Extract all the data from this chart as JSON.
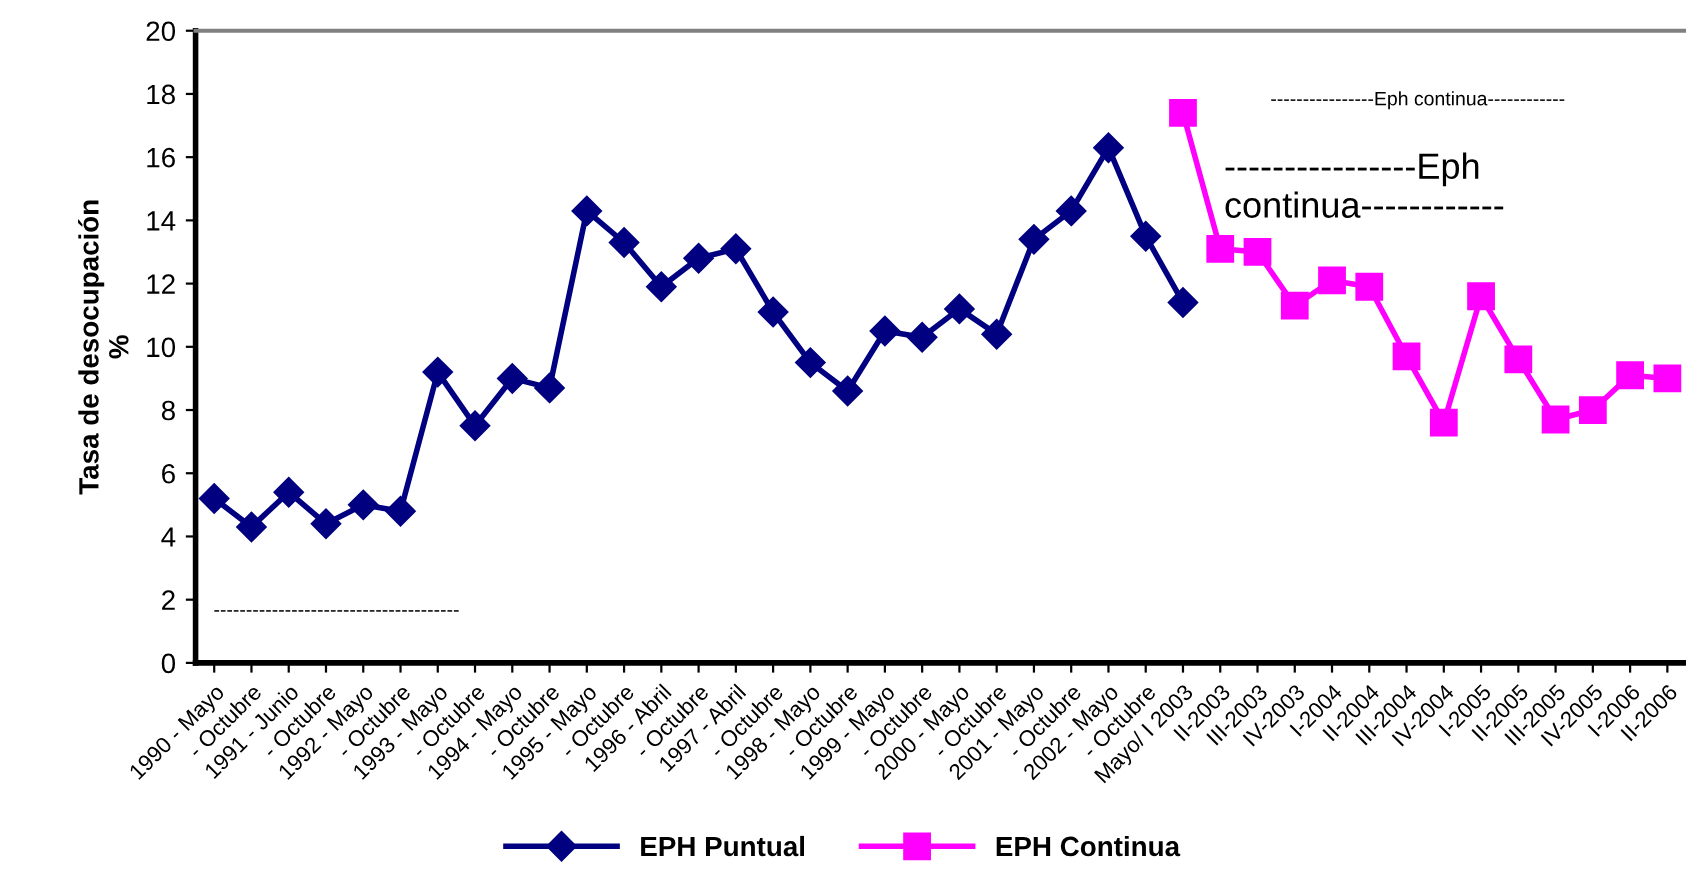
{
  "chart_data": {
    "type": "line",
    "ylabel": "Tasa de desocupación\n%",
    "categories": [
      "1990 - Mayo",
      " - Octubre",
      "1991 - Junio",
      " - Octubre",
      "1992 - Mayo",
      " - Octubre",
      "1993 - Mayo",
      " - Octubre",
      "1994 - Mayo",
      " - Octubre",
      "1995 - Mayo",
      " - Octubre",
      "1996 - Abril",
      " - Octubre",
      "1997 - Abril",
      " - Octubre",
      "1998 - Mayo",
      " - Octubre",
      "1999 - Mayo",
      " - Octubre",
      "2000 - Mayo",
      " - Octubre",
      "2001 - Mayo",
      " - Octubre",
      "2002 - Mayo",
      " - Octubre",
      " Mayo/ I 2003",
      "II-2003",
      "III-2003",
      "IV-2003",
      "I-2004",
      "II-2004",
      "III-2004",
      "IV-2004",
      "I-2005",
      "II-2005",
      "III-2005",
      "IV-2005",
      "I-2006",
      "II-2006"
    ],
    "series": [
      {
        "name": "EPH Puntual",
        "color": "#000080",
        "marker": "diamond",
        "values": [
          5.2,
          4.3,
          5.4,
          4.4,
          5.0,
          4.8,
          9.2,
          7.5,
          9.0,
          8.7,
          14.3,
          13.3,
          11.9,
          12.8,
          13.1,
          11.1,
          9.5,
          8.6,
          10.5,
          10.3,
          11.2,
          10.4,
          13.4,
          14.3,
          16.3,
          13.5,
          11.4,
          null,
          null,
          null,
          null,
          null,
          null,
          null,
          null,
          null,
          null,
          null,
          null,
          null
        ]
      },
      {
        "name": "EPH Continua",
        "color": "#ff00ff",
        "marker": "square",
        "values": [
          null,
          null,
          null,
          null,
          null,
          null,
          null,
          null,
          null,
          null,
          null,
          null,
          null,
          null,
          null,
          null,
          null,
          null,
          null,
          null,
          null,
          null,
          null,
          null,
          null,
          null,
          17.4,
          13.1,
          13.0,
          11.3,
          12.1,
          11.9,
          9.7,
          7.6,
          11.6,
          9.6,
          7.7,
          8.0,
          9.1,
          9.0
        ]
      }
    ],
    "ylim": [
      0,
      20
    ],
    "yticks": [
      0,
      2,
      4,
      6,
      8,
      10,
      12,
      14,
      16,
      18,
      20
    ],
    "grid": false,
    "legend": "bottom",
    "annotations": [
      "----------------Eph continua------------",
      "----------------Eph continua------------",
      "--------------------------------------"
    ]
  }
}
